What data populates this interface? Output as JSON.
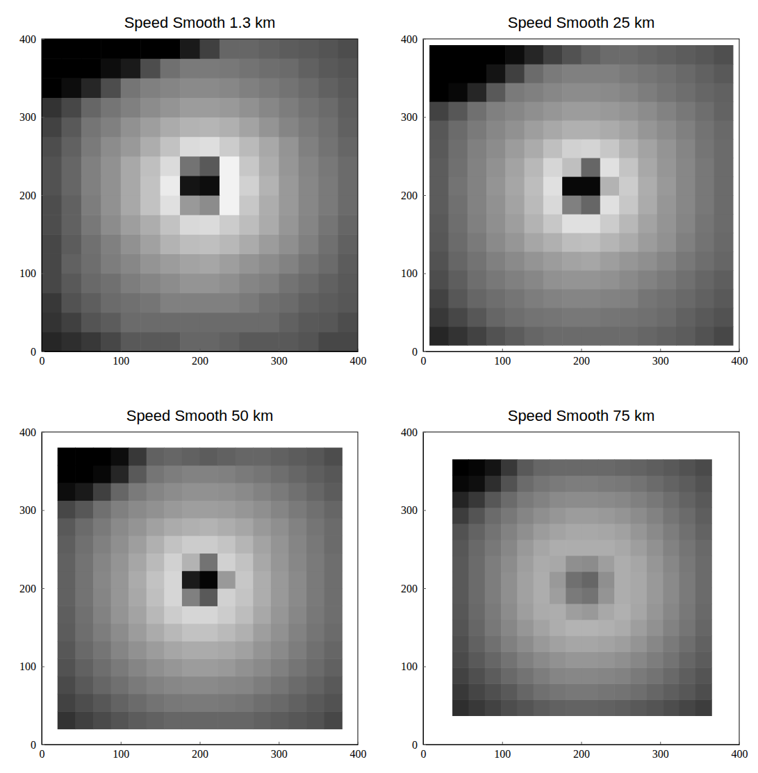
{
  "chart_data": [
    {
      "type": "heatmap",
      "title": "Speed Smooth 1.3 km",
      "xlim": [
        0,
        400
      ],
      "ylim": [
        0,
        400
      ],
      "xticks": [
        0,
        100,
        200,
        300,
        400
      ],
      "yticks": [
        0,
        100,
        200,
        300,
        400
      ],
      "zlim": [
        0,
        100
      ],
      "x": [
        12.5,
        37.5,
        62.5,
        87.5,
        112.5,
        137.5,
        162.5,
        187.5,
        212.5,
        237.5,
        262.5,
        287.5,
        312.5,
        337.5,
        362.5,
        387.5
      ],
      "y": [
        12.5,
        37.5,
        62.5,
        87.5,
        112.5,
        137.5,
        162.5,
        187.5,
        212.5,
        237.5,
        262.5,
        287.5,
        312.5,
        337.5,
        362.5,
        387.5
      ],
      "z": [
        [
          15,
          18,
          22,
          28,
          35,
          35,
          35,
          40,
          40,
          38,
          35,
          35,
          35,
          33,
          28,
          28
        ],
        [
          20,
          25,
          33,
          36,
          42,
          42,
          42,
          42,
          42,
          42,
          42,
          42,
          38,
          35,
          34,
          30
        ],
        [
          22,
          32,
          37,
          42,
          44,
          46,
          50,
          50,
          50,
          50,
          48,
          44,
          42,
          38,
          36,
          34
        ],
        [
          28,
          35,
          41,
          44,
          49,
          52,
          55,
          58,
          58,
          56,
          52,
          50,
          45,
          42,
          38,
          35
        ],
        [
          28,
          38,
          43,
          49,
          53,
          58,
          61,
          64,
          65,
          62,
          58,
          55,
          51,
          46,
          42,
          36
        ],
        [
          28,
          36,
          44,
          50,
          57,
          63,
          70,
          74,
          75,
          72,
          67,
          61,
          56,
          50,
          44,
          38
        ],
        [
          30,
          38,
          47,
          55,
          62,
          68,
          76,
          85,
          86,
          80,
          74,
          67,
          59,
          52,
          46,
          40
        ],
        [
          30,
          38,
          49,
          57,
          66,
          76,
          88,
          60,
          55,
          95,
          78,
          68,
          60,
          53,
          48,
          42
        ],
        [
          32,
          40,
          50,
          57,
          66,
          76,
          92,
          8,
          5,
          95,
          82,
          70,
          60,
          53,
          48,
          42
        ],
        [
          32,
          40,
          50,
          57,
          66,
          75,
          86,
          45,
          35,
          95,
          78,
          68,
          59,
          52,
          47,
          42
        ],
        [
          30,
          38,
          48,
          55,
          60,
          68,
          76,
          86,
          87,
          80,
          73,
          66,
          58,
          50,
          45,
          40
        ],
        [
          26,
          35,
          46,
          50,
          57,
          62,
          67,
          70,
          71,
          69,
          64,
          58,
          52,
          48,
          44,
          38
        ],
        [
          20,
          28,
          40,
          46,
          50,
          55,
          58,
          61,
          61,
          60,
          57,
          53,
          49,
          45,
          42,
          37
        ],
        [
          0,
          5,
          15,
          30,
          46,
          50,
          52,
          54,
          54,
          53,
          50,
          48,
          45,
          42,
          38,
          35
        ],
        [
          0,
          0,
          0,
          5,
          10,
          30,
          44,
          48,
          48,
          47,
          45,
          43,
          42,
          38,
          35,
          33
        ],
        [
          0,
          0,
          0,
          0,
          0,
          0,
          0,
          10,
          25,
          40,
          40,
          38,
          36,
          35,
          33,
          30
        ]
      ]
    },
    {
      "type": "heatmap",
      "title": "Speed Smooth 25 km",
      "xlim": [
        0,
        400
      ],
      "ylim": [
        0,
        400
      ],
      "xticks": [
        0,
        100,
        200,
        300,
        400
      ],
      "yticks": [
        0,
        100,
        200,
        300,
        400
      ],
      "zlim": [
        0,
        100
      ],
      "x": [
        20,
        44,
        68,
        92,
        116,
        140,
        164,
        188,
        212,
        236,
        260,
        284,
        308,
        332,
        356,
        380
      ],
      "y": [
        20,
        44,
        68,
        92,
        116,
        140,
        164,
        188,
        212,
        236,
        260,
        284,
        308,
        332,
        356,
        380
      ],
      "z": [
        [
          15,
          20,
          26,
          32,
          36,
          40,
          42,
          42,
          42,
          42,
          42,
          40,
          38,
          36,
          32,
          28
        ],
        [
          22,
          28,
          34,
          40,
          43,
          45,
          46,
          47,
          47,
          46,
          45,
          44,
          42,
          38,
          35,
          32
        ],
        [
          26,
          34,
          40,
          43,
          46,
          49,
          51,
          52,
          52,
          51,
          50,
          46,
          44,
          41,
          38,
          35
        ],
        [
          30,
          37,
          43,
          47,
          50,
          53,
          57,
          58,
          58,
          57,
          54,
          51,
          48,
          44,
          40,
          37
        ],
        [
          32,
          40,
          45,
          50,
          54,
          58,
          61,
          64,
          65,
          62,
          59,
          56,
          52,
          47,
          43,
          40
        ],
        [
          34,
          42,
          48,
          54,
          59,
          65,
          69,
          74,
          75,
          71,
          67,
          61,
          57,
          50,
          45,
          41
        ],
        [
          35,
          43,
          50,
          56,
          62,
          70,
          78,
          88,
          88,
          80,
          72,
          64,
          58,
          52,
          46,
          42
        ],
        [
          36,
          44,
          51,
          57,
          64,
          73,
          85,
          50,
          40,
          88,
          78,
          67,
          59,
          53,
          47,
          42
        ],
        [
          36,
          45,
          51,
          58,
          65,
          74,
          88,
          3,
          3,
          70,
          80,
          68,
          60,
          53,
          47,
          42
        ],
        [
          36,
          44,
          51,
          57,
          64,
          72,
          84,
          75,
          40,
          88,
          77,
          66,
          59,
          53,
          47,
          42
        ],
        [
          35,
          43,
          50,
          55,
          61,
          67,
          75,
          82,
          83,
          78,
          70,
          64,
          58,
          52,
          46,
          42
        ],
        [
          34,
          42,
          48,
          53,
          57,
          62,
          66,
          69,
          69,
          67,
          64,
          59,
          55,
          50,
          45,
          41
        ],
        [
          26,
          34,
          44,
          50,
          53,
          56,
          59,
          61,
          61,
          60,
          58,
          55,
          51,
          47,
          43,
          39
        ],
        [
          0,
          3,
          15,
          35,
          48,
          50,
          53,
          55,
          55,
          54,
          52,
          49,
          46,
          43,
          40,
          38
        ],
        [
          0,
          0,
          0,
          8,
          25,
          42,
          48,
          50,
          50,
          50,
          48,
          46,
          44,
          41,
          38,
          35
        ],
        [
          0,
          0,
          0,
          0,
          5,
          15,
          25,
          32,
          38,
          42,
          42,
          40,
          38,
          36,
          34,
          31
        ]
      ]
    },
    {
      "type": "heatmap",
      "title": "Speed Smooth 50 km",
      "xlim": [
        0,
        400
      ],
      "ylim": [
        0,
        400
      ],
      "xticks": [
        0,
        100,
        200,
        300,
        400
      ],
      "yticks": [
        0,
        100,
        200,
        300,
        400
      ],
      "zlim": [
        0,
        100
      ],
      "x": [
        31.25,
        53.75,
        76.25,
        98.75,
        121.25,
        143.75,
        166.25,
        188.75,
        211.25,
        233.75,
        256.25,
        278.75,
        301.25,
        323.75,
        346.25,
        368.75
      ],
      "y": [
        31.25,
        53.75,
        76.25,
        98.75,
        121.25,
        143.75,
        166.25,
        188.75,
        211.25,
        233.75,
        256.25,
        278.75,
        301.25,
        323.75,
        346.25,
        368.75
      ],
      "z": [
        [
          20,
          25,
          29,
          33,
          36,
          38,
          40,
          40,
          40,
          40,
          40,
          38,
          36,
          34,
          32,
          28
        ],
        [
          26,
          30,
          34,
          39,
          42,
          45,
          47,
          48,
          48,
          47,
          46,
          43,
          41,
          38,
          35,
          32
        ],
        [
          29,
          35,
          40,
          44,
          48,
          51,
          53,
          54,
          54,
          53,
          52,
          49,
          46,
          42,
          39,
          35
        ],
        [
          32,
          38,
          43,
          48,
          52,
          56,
          59,
          61,
          61,
          60,
          57,
          54,
          50,
          46,
          42,
          38
        ],
        [
          34,
          41,
          46,
          52,
          57,
          61,
          65,
          67,
          67,
          66,
          63,
          58,
          54,
          49,
          44,
          40
        ],
        [
          36,
          43,
          49,
          55,
          61,
          67,
          72,
          76,
          76,
          73,
          69,
          62,
          57,
          51,
          46,
          42
        ],
        [
          37,
          44,
          51,
          58,
          64,
          72,
          80,
          84,
          84,
          80,
          74,
          66,
          59,
          53,
          47,
          43
        ],
        [
          38,
          45,
          52,
          59,
          66,
          75,
          84,
          50,
          35,
          82,
          77,
          68,
          60,
          54,
          48,
          43
        ],
        [
          38,
          45,
          53,
          59,
          67,
          76,
          84,
          10,
          2,
          60,
          78,
          68,
          60,
          54,
          48,
          43
        ],
        [
          38,
          45,
          52,
          58,
          65,
          73,
          82,
          70,
          45,
          82,
          76,
          66,
          59,
          53,
          48,
          43
        ],
        [
          37,
          44,
          50,
          56,
          62,
          69,
          76,
          80,
          80,
          77,
          71,
          64,
          58,
          52,
          47,
          42
        ],
        [
          35,
          42,
          48,
          54,
          58,
          63,
          67,
          69,
          70,
          68,
          65,
          60,
          56,
          51,
          46,
          42
        ],
        [
          28,
          34,
          44,
          50,
          54,
          57,
          60,
          62,
          62,
          61,
          59,
          56,
          52,
          48,
          44,
          40
        ],
        [
          5,
          10,
          25,
          40,
          48,
          52,
          55,
          57,
          57,
          56,
          54,
          51,
          48,
          44,
          40,
          36
        ],
        [
          0,
          0,
          3,
          15,
          35,
          46,
          49,
          51,
          51,
          50,
          48,
          46,
          43,
          40,
          37,
          34
        ],
        [
          0,
          0,
          0,
          5,
          22,
          38,
          40,
          38,
          36,
          38,
          40,
          40,
          38,
          36,
          34,
          30
        ]
      ]
    },
    {
      "type": "heatmap",
      "title": "Speed Smooth 75 km",
      "xlim": [
        0,
        400
      ],
      "ylim": [
        0,
        400
      ],
      "xticks": [
        0,
        100,
        200,
        300,
        400
      ],
      "yticks": [
        0,
        100,
        200,
        300,
        400
      ],
      "zlim": [
        0,
        100
      ],
      "x": [
        47.25,
        67.75,
        88.25,
        108.75,
        129.25,
        149.75,
        170.25,
        190.75,
        211.25,
        231.75,
        252.25,
        272.75,
        293.25,
        313.75,
        334.25,
        354.75
      ],
      "y": [
        47.25,
        67.75,
        88.25,
        108.75,
        129.25,
        149.75,
        170.25,
        190.75,
        211.25,
        231.75,
        252.25,
        272.75,
        293.25,
        313.75,
        334.25,
        354.75
      ],
      "z": [
        [
          18,
          22,
          26,
          30,
          33,
          36,
          38,
          39,
          39,
          38,
          37,
          35,
          33,
          30,
          27,
          24
        ],
        [
          22,
          27,
          31,
          35,
          40,
          44,
          46,
          47,
          47,
          46,
          45,
          43,
          40,
          37,
          34,
          30
        ],
        [
          26,
          31,
          36,
          41,
          45,
          49,
          52,
          53,
          53,
          52,
          51,
          48,
          45,
          41,
          37,
          33
        ],
        [
          29,
          35,
          40,
          45,
          50,
          54,
          57,
          59,
          59,
          58,
          56,
          53,
          49,
          45,
          40,
          36
        ],
        [
          31,
          38,
          44,
          50,
          55,
          60,
          63,
          65,
          65,
          64,
          62,
          58,
          53,
          48,
          43,
          38
        ],
        [
          33,
          40,
          47,
          53,
          59,
          64,
          68,
          70,
          70,
          69,
          67,
          62,
          57,
          51,
          46,
          40
        ],
        [
          34,
          41,
          48,
          55,
          62,
          67,
          68,
          62,
          60,
          66,
          69,
          65,
          59,
          53,
          47,
          41
        ],
        [
          35,
          42,
          49,
          56,
          63,
          68,
          62,
          48,
          45,
          58,
          68,
          66,
          60,
          54,
          48,
          42
        ],
        [
          35,
          42,
          49,
          56,
          63,
          68,
          60,
          44,
          40,
          56,
          68,
          66,
          60,
          54,
          48,
          42
        ],
        [
          35,
          42,
          49,
          55,
          62,
          67,
          66,
          56,
          55,
          62,
          68,
          65,
          59,
          53,
          47,
          42
        ],
        [
          34,
          41,
          47,
          53,
          60,
          65,
          68,
          68,
          68,
          68,
          66,
          62,
          57,
          51,
          46,
          41
        ],
        [
          32,
          39,
          45,
          51,
          56,
          61,
          64,
          66,
          66,
          65,
          63,
          59,
          54,
          49,
          44,
          39
        ],
        [
          24,
          33,
          42,
          47,
          52,
          56,
          59,
          61,
          61,
          60,
          58,
          55,
          51,
          46,
          42,
          37
        ],
        [
          14,
          22,
          34,
          42,
          48,
          51,
          54,
          55,
          55,
          54,
          53,
          50,
          47,
          43,
          39,
          35
        ],
        [
          3,
          6,
          18,
          32,
          42,
          46,
          48,
          49,
          49,
          48,
          47,
          45,
          42,
          39,
          36,
          32
        ],
        [
          0,
          2,
          8,
          22,
          35,
          40,
          41,
          41,
          41,
          41,
          40,
          39,
          37,
          35,
          32,
          29
        ]
      ]
    }
  ]
}
